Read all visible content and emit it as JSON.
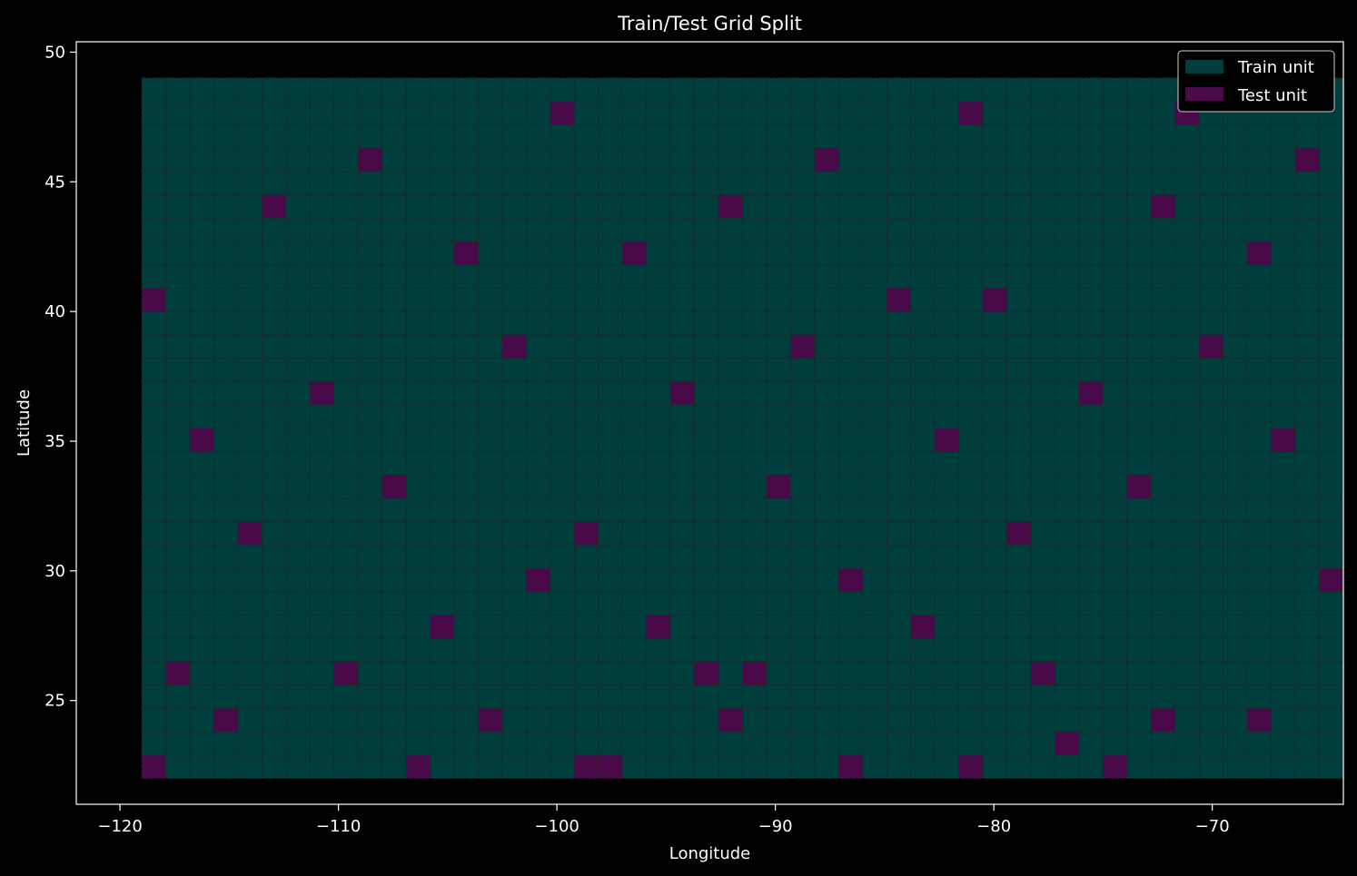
{
  "chart_data": {
    "type": "heatmap",
    "title": "Train/Test Grid Split",
    "xlabel": "Longitude",
    "ylabel": "Latitude",
    "xlim": [
      -122,
      -64
    ],
    "ylim": [
      21,
      50.4
    ],
    "xticks": [
      -120,
      -110,
      -100,
      -90,
      -80,
      -70
    ],
    "xtick_labels": [
      "−120",
      "−110",
      "−100",
      "−90",
      "−80",
      "−70"
    ],
    "yticks": [
      25,
      30,
      35,
      40,
      45,
      50
    ],
    "ytick_labels": [
      "25",
      "30",
      "35",
      "40",
      "45",
      "50"
    ],
    "grid": {
      "lon_min": -119,
      "lat_min": 22,
      "cell_width": 1.1,
      "cell_height": 0.9,
      "n_cols": 50,
      "n_rows": 30
    },
    "test_cells": [
      [
        0,
        0
      ],
      [
        11,
        0
      ],
      [
        18,
        0
      ],
      [
        19,
        0
      ],
      [
        29,
        0
      ],
      [
        34,
        0
      ],
      [
        40,
        0
      ],
      [
        38,
        1
      ],
      [
        3,
        2
      ],
      [
        14,
        2
      ],
      [
        24,
        2
      ],
      [
        42,
        2
      ],
      [
        46,
        2
      ],
      [
        1,
        4
      ],
      [
        8,
        4
      ],
      [
        23,
        4
      ],
      [
        25,
        4
      ],
      [
        37,
        4
      ],
      [
        12,
        6
      ],
      [
        21,
        6
      ],
      [
        32,
        6
      ],
      [
        16,
        8
      ],
      [
        29,
        8
      ],
      [
        49,
        8
      ],
      [
        4,
        10
      ],
      [
        18,
        10
      ],
      [
        36,
        10
      ],
      [
        10,
        12
      ],
      [
        26,
        12
      ],
      [
        41,
        12
      ],
      [
        2,
        14
      ],
      [
        33,
        14
      ],
      [
        47,
        14
      ],
      [
        7,
        16
      ],
      [
        22,
        16
      ],
      [
        39,
        16
      ],
      [
        15,
        18
      ],
      [
        27,
        18
      ],
      [
        44,
        18
      ],
      [
        0,
        20
      ],
      [
        31,
        20
      ],
      [
        35,
        20
      ],
      [
        13,
        22
      ],
      [
        20,
        22
      ],
      [
        46,
        22
      ],
      [
        5,
        24
      ],
      [
        24,
        24
      ],
      [
        42,
        24
      ],
      [
        9,
        26
      ],
      [
        28,
        26
      ],
      [
        48,
        26
      ],
      [
        17,
        28
      ],
      [
        34,
        28
      ],
      [
        43,
        28
      ]
    ],
    "legend": {
      "position": "top-right",
      "entries": [
        {
          "label": "Train unit",
          "color": "#003d3d"
        },
        {
          "label": "Test unit",
          "color": "#4a0a4a"
        }
      ]
    },
    "colors": {
      "background": "#000000",
      "train": "#003d3d",
      "test": "#4a0a4a",
      "edge": "#1a2a2a",
      "axis": "#ffffff"
    }
  }
}
